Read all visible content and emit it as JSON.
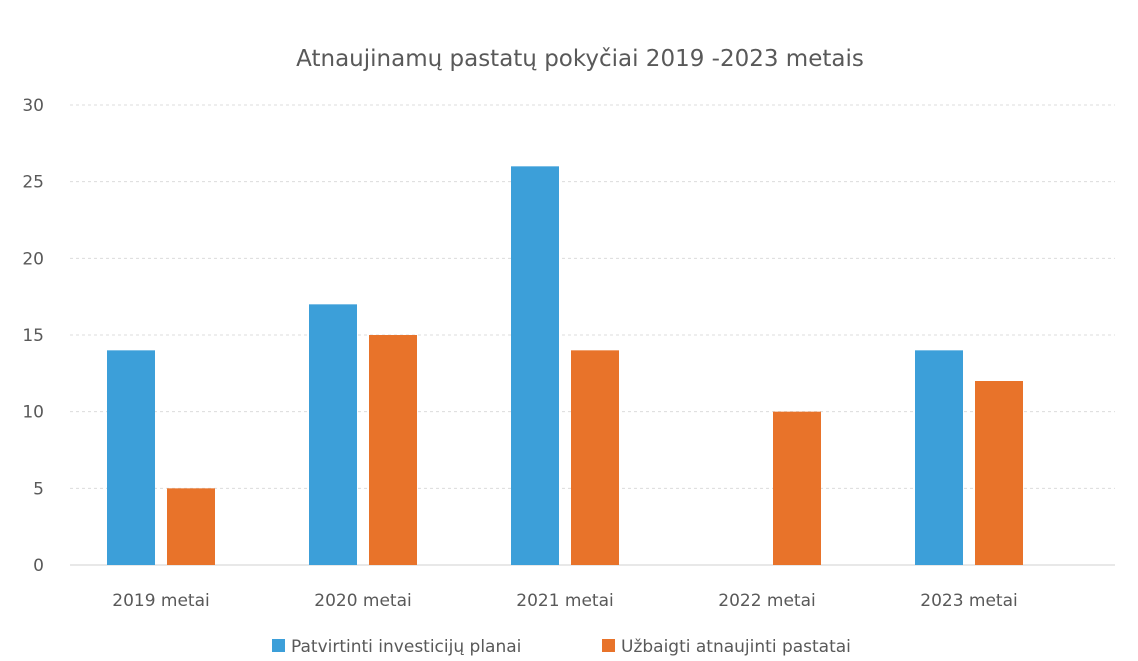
{
  "chart_data": {
    "type": "bar",
    "title": "Atnaujinamų pastatų pokyčiai 2019 -2023 metais",
    "categories": [
      "2019 metai",
      "2020 metai",
      "2021 metai",
      "2022 metai",
      "2023 metai"
    ],
    "series": [
      {
        "name": "Patvirtinti investicijų planai",
        "color": "#3c9fd9",
        "values": [
          14,
          17,
          26,
          0,
          14
        ]
      },
      {
        "name": "Užbaigti atnaujinti pastatai",
        "color": "#e8732a",
        "values": [
          5,
          15,
          14,
          10,
          12
        ]
      }
    ],
    "ylim": [
      0,
      30
    ],
    "yticks": [
      "0",
      "5",
      "10",
      "15",
      "20",
      "25",
      "30"
    ],
    "grid": true,
    "legend_position": "bottom"
  }
}
